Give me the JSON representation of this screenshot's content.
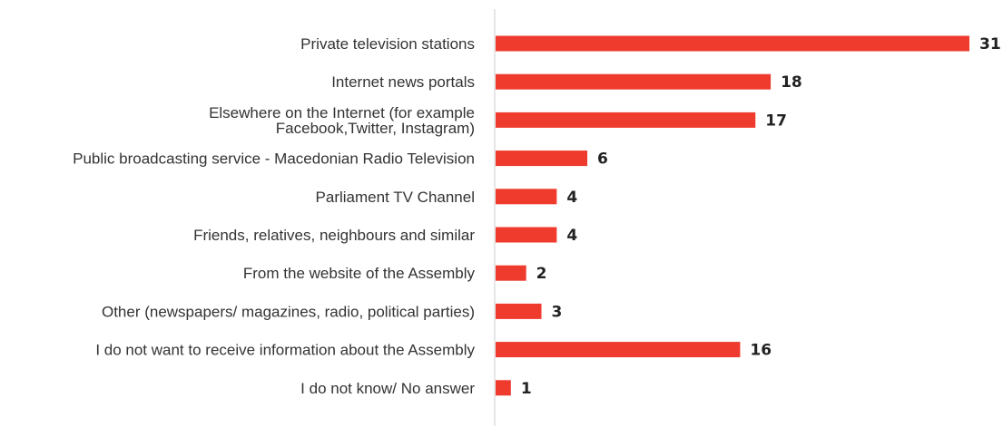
{
  "chart_data": {
    "type": "bar",
    "orientation": "horizontal",
    "categories": [
      [
        "Private television stations"
      ],
      [
        "Internet news portals"
      ],
      [
        "Elsewhere on the Internet (for example",
        "Facebook,Twitter, Instagram)"
      ],
      [
        "Public broadcasting service - Macedonian Radio Television"
      ],
      [
        "Parliament TV Channel"
      ],
      [
        "Friends, relatives, neighbours and similar"
      ],
      [
        "From the website of the Assembly"
      ],
      [
        "Other (newspapers/ magazines, radio, political parties)"
      ],
      [
        "I do not want to receive information about the Assembly"
      ],
      [
        "I do not know/ No answer"
      ]
    ],
    "values": [
      31,
      18,
      17,
      6,
      4,
      4,
      2,
      3,
      16,
      1
    ],
    "value_labels": [
      "31",
      "18",
      "17",
      "6",
      "4",
      "4",
      "2",
      "3",
      "16",
      "1"
    ],
    "bar_color": "#ee3b2e",
    "axis_color": "#cccccc",
    "xlim": [
      0,
      31
    ],
    "grid": false,
    "legend": "none"
  }
}
